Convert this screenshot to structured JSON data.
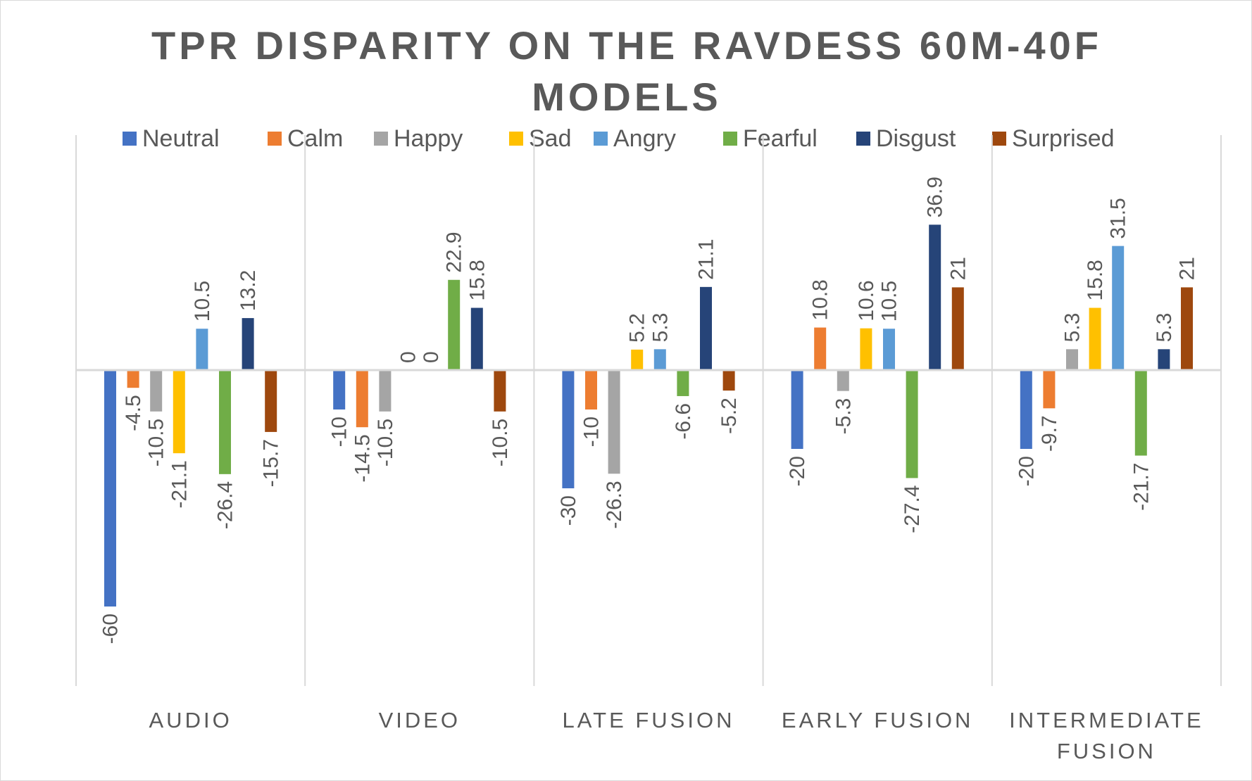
{
  "chart_data": {
    "type": "bar",
    "title": "TPR DISPARITY ON THE RAVDESS 60M-40F MODELS",
    "categories": [
      [
        "AUDIO"
      ],
      [
        "VIDEO"
      ],
      [
        "LATE FUSION"
      ],
      [
        "EARLY FUSION"
      ],
      [
        "INTERMEDIATE",
        "FUSION"
      ]
    ],
    "series": [
      {
        "name": "Neutral",
        "color": "#4472C4",
        "values": [
          -60,
          -10,
          -30,
          -20,
          -20
        ]
      },
      {
        "name": "Calm",
        "color": "#ED7D31",
        "values": [
          -4.5,
          -14.5,
          -10,
          10.8,
          -9.7
        ]
      },
      {
        "name": "Happy",
        "color": "#A5A5A5",
        "values": [
          -10.5,
          -10.5,
          -26.3,
          -5.3,
          5.3
        ]
      },
      {
        "name": "Sad",
        "color": "#FFC000",
        "values": [
          -21.1,
          0,
          5.2,
          10.6,
          15.8
        ]
      },
      {
        "name": "Angry",
        "color": "#5B9BD5",
        "values": [
          10.5,
          0,
          5.3,
          10.5,
          31.5
        ]
      },
      {
        "name": "Fearful",
        "color": "#70AD47",
        "values": [
          -26.4,
          22.9,
          -6.6,
          -27.4,
          -21.7
        ]
      },
      {
        "name": "Disgust",
        "color": "#264478",
        "values": [
          13.2,
          15.8,
          21.1,
          36.9,
          5.3
        ]
      },
      {
        "name": "Surprised",
        "color": "#9E480E",
        "values": [
          -15.7,
          -10.5,
          -5.2,
          21,
          21
        ]
      }
    ],
    "xlabel": "",
    "ylabel": "",
    "ylim": [
      -80,
      60
    ],
    "grid": false,
    "legend_position": "top"
  }
}
